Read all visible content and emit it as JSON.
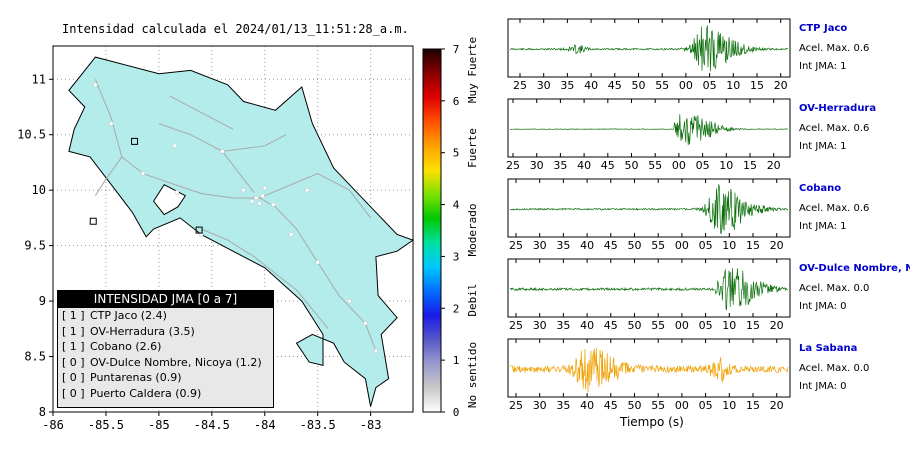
{
  "map": {
    "title": "Intensidad calculada el 2024/01/13_11:51:28_a.m.",
    "x_ticks": [
      "-86",
      "-85.5",
      "-85",
      "-84.5",
      "-84",
      "-83.5",
      "-83"
    ],
    "y_ticks": [
      "8",
      "8.5",
      "9",
      "9.5",
      "10",
      "10.5",
      "11"
    ],
    "land_color": "#b4ecec",
    "legend": {
      "title": "INTENSIDAD JMA [0 a 7]",
      "rows": [
        {
          "level": "[ 1 ]",
          "name": "CTP Jaco (2.4)"
        },
        {
          "level": "[ 1 ]",
          "name": "OV-Herradura (3.5)"
        },
        {
          "level": "[ 1 ]",
          "name": "Cobano (2.6)"
        },
        {
          "level": "[ 0 ]",
          "name": "OV-Dulce Nombre, Nicoya (1.2)"
        },
        {
          "level": "[ 0 ]",
          "name": "Puntarenas (0.9)"
        },
        {
          "level": "[ 0 ]",
          "name": "Puerto Caldera (0.9)"
        }
      ]
    }
  },
  "colorbar": {
    "ticks": [
      "0",
      "1",
      "2",
      "3",
      "4",
      "5",
      "6",
      "7"
    ],
    "labels": [
      "No sentido",
      "Debil",
      "Moderado",
      "Fuerte",
      "Muy Fuerte"
    ]
  },
  "waveforms": {
    "xlabel": "Tiempo (s)",
    "tick_labels": [
      "25",
      "30",
      "35",
      "40",
      "45",
      "50",
      "55",
      "00",
      "05",
      "10",
      "15",
      "20"
    ],
    "stations": [
      {
        "name": "CTP Jaco",
        "accel": "Acel. Max. 0.6",
        "jma": "Int JMA: 1",
        "color": "#0a6e0a"
      },
      {
        "name": "OV-Herradura",
        "accel": "Acel. Max. 0.6",
        "jma": "Int JMA: 1",
        "color": "#0a6e0a"
      },
      {
        "name": "Cobano",
        "accel": "Acel. Max. 0.6",
        "jma": "Int JMA: 1",
        "color": "#0a6e0a"
      },
      {
        "name": "OV-Dulce Nombre, Nicoya",
        "accel": "Acel. Max. 0.0",
        "jma": "Int JMA: 0",
        "color": "#0a6e0a"
      },
      {
        "name": "La Sabana",
        "accel": "Acel. Max. 0.0",
        "jma": "Int JMA: 0",
        "color": "#f0a000"
      }
    ]
  },
  "chart_data": [
    {
      "type": "heatmap",
      "title": "Intensidad calculada el 2024/01/13_11:51:28_a.m.",
      "xlim": [
        -86,
        -82.6
      ],
      "ylim": [
        8,
        11.3
      ],
      "x_ticks": [
        -86,
        -85.5,
        -85,
        -84.5,
        -84,
        -83.5,
        -83
      ],
      "y_ticks": [
        8,
        8.5,
        9,
        9.5,
        10,
        10.5,
        11
      ],
      "colorbar_range": [
        0,
        7
      ],
      "colorbar_labels": [
        "No sentido",
        "Debil",
        "Moderado",
        "Fuerte",
        "Muy Fuerte"
      ]
    },
    {
      "type": "line",
      "xlabel": "Tiempo (s)",
      "x_tick_labels": [
        "25",
        "30",
        "35",
        "40",
        "45",
        "50",
        "55",
        "00",
        "05",
        "10",
        "15",
        "20"
      ],
      "series": [
        {
          "name": "CTP Jaco",
          "event_onset_s": 59,
          "peak_s": 64
        },
        {
          "name": "OV-Herradura",
          "event_onset_s": 59,
          "peak_s": 62
        },
        {
          "name": "Cobano",
          "event_onset_s": 61,
          "peak_s": 68
        },
        {
          "name": "OV-Dulce Nombre, Nicoya",
          "event_onset_s": 67,
          "peak_s": 70
        },
        {
          "name": "La Sabana",
          "event_onset_s": 34,
          "peak_s": 40
        }
      ]
    }
  ]
}
